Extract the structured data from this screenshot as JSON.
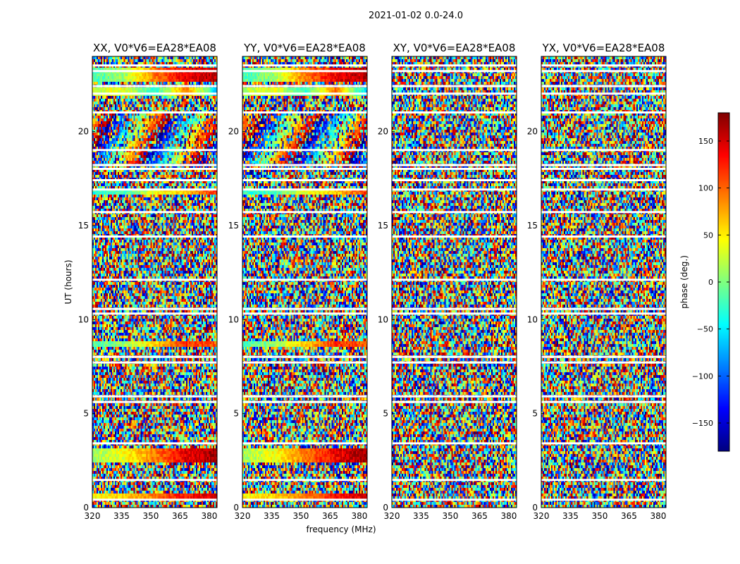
{
  "figure_title": "2021-01-02 0.0-24.0",
  "xlabel": "frequency (MHz)",
  "ylabel": "UT (hours)",
  "chart_data": {
    "type": "heatmap",
    "x_ticks": [
      320,
      335,
      350,
      365,
      380
    ],
    "y_ticks": [
      0,
      5,
      10,
      15,
      20
    ],
    "xlim": [
      320,
      384
    ],
    "ylim": [
      0,
      24
    ],
    "panels": [
      {
        "title": "XX, V0*V6=EA28*EA08",
        "mode": "parallel",
        "seed": 11
      },
      {
        "title": "YY, V0*V6=EA28*EA08",
        "mode": "parallel",
        "seed": 23
      },
      {
        "title": "XY, V0*V6=EA28*EA08",
        "mode": "cross",
        "seed": 37
      },
      {
        "title": "YX, V0*V6=EA28*EA08",
        "mode": "cross",
        "seed": 51
      }
    ],
    "flagged_ut_hours": [
      0.4,
      1.45,
      3.4,
      5.6,
      5.9,
      7.7,
      8.0,
      10.3,
      10.55,
      12.1,
      14.4,
      15.7,
      16.9,
      17.4,
      18.0,
      18.2,
      19.0,
      21.0,
      22.0,
      22.4,
      23.2,
      23.5
    ],
    "coherent_bands": [
      {
        "ut": [
          22.7,
          23.4
        ],
        "phase": [
          -20,
          10,
          90,
          140,
          160
        ]
      },
      {
        "ut": [
          21.9,
          22.3
        ],
        "phase": [
          20,
          40,
          -30,
          90,
          -60
        ]
      },
      {
        "ut": [
          16.6,
          16.9
        ],
        "phase": [
          -30,
          -20,
          40,
          60,
          120
        ]
      },
      {
        "ut": [
          8.6,
          8.8
        ],
        "phase": [
          -20,
          10,
          60,
          120,
          100
        ]
      },
      {
        "ut": [
          2.4,
          3.1
        ],
        "phase": [
          10,
          40,
          90,
          140,
          170
        ]
      },
      {
        "ut": [
          0.5,
          0.7
        ],
        "phase": [
          40,
          60,
          90,
          130,
          150
        ]
      }
    ],
    "colorbar": {
      "label": "phase (deg.)",
      "range": [
        -180,
        180
      ],
      "ticks": [
        -150,
        -100,
        -50,
        0,
        50,
        100,
        150
      ],
      "colormap": "jet"
    }
  }
}
